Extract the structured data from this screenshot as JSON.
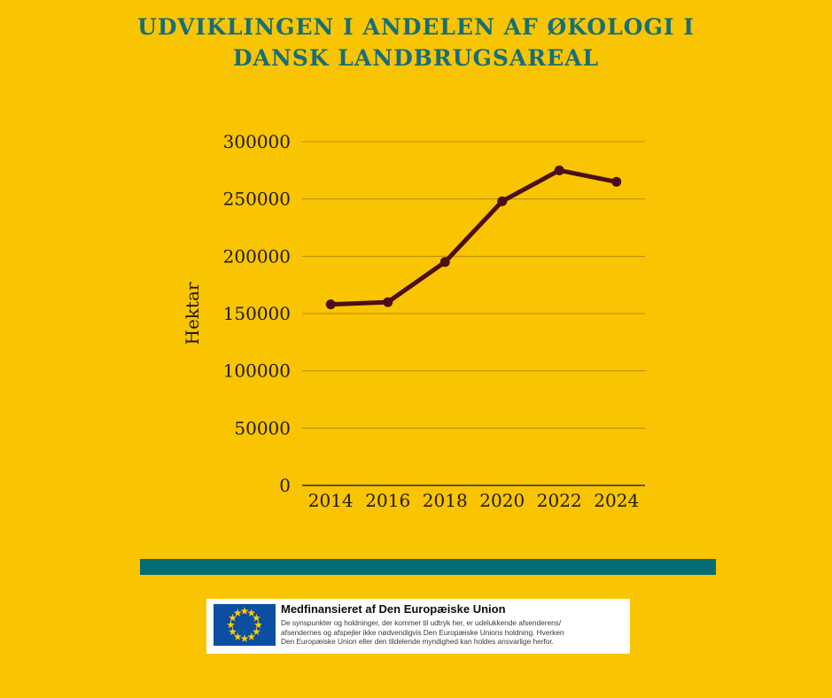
{
  "page": {
    "background_color": "#F9C401"
  },
  "title": {
    "line1": "UDVIKLINGEN I ANDELEN AF ØKOLOGI I",
    "line2": "DANSK LANDBRUGSAREAL",
    "color": "#166F78"
  },
  "chart_data": {
    "type": "line",
    "title": "UDVIKLINGEN I ANDELEN AF ØKOLOGI I DANSK LANDBRUGSAREAL",
    "x": [
      "2014",
      "2016",
      "2018",
      "2020",
      "2022",
      "2024"
    ],
    "values": [
      158000,
      160000,
      195000,
      248000,
      275000,
      265000
    ],
    "xlabel": "",
    "ylabel": "Hektar",
    "ylim": [
      0,
      300000
    ],
    "yticks": [
      0,
      50000,
      100000,
      150000,
      200000,
      250000,
      300000
    ],
    "ytick_labels": [
      "0",
      "50000",
      "100000",
      "150000",
      "200000",
      "250000",
      "300000"
    ],
    "grid": true,
    "legend": false,
    "line_color": "#4B0F14",
    "marker": "circle",
    "gridline_color": "rgba(70,55,15,0.38)",
    "axis_color": "#4b4539",
    "tick_label_color": "#1f1b10"
  },
  "divider": {
    "color": "#066C74"
  },
  "eu_attribution": {
    "flag": {
      "background": "#0B4EA2",
      "star_color": "#FFCC00"
    },
    "title": "Medfinansieret af Den Europæiske Union",
    "body_lines": [
      "De synspunkter og holdninger, der kommer til udtryk her, er udelukkende afsenderens/",
      "afsendernes og afspejler ikke nødvendigvis Den Europæiske Unions holdning. Hverken",
      "Den Europæiske Union eller den tildelende myndighed kan holdes ansvarlige herfor."
    ]
  }
}
